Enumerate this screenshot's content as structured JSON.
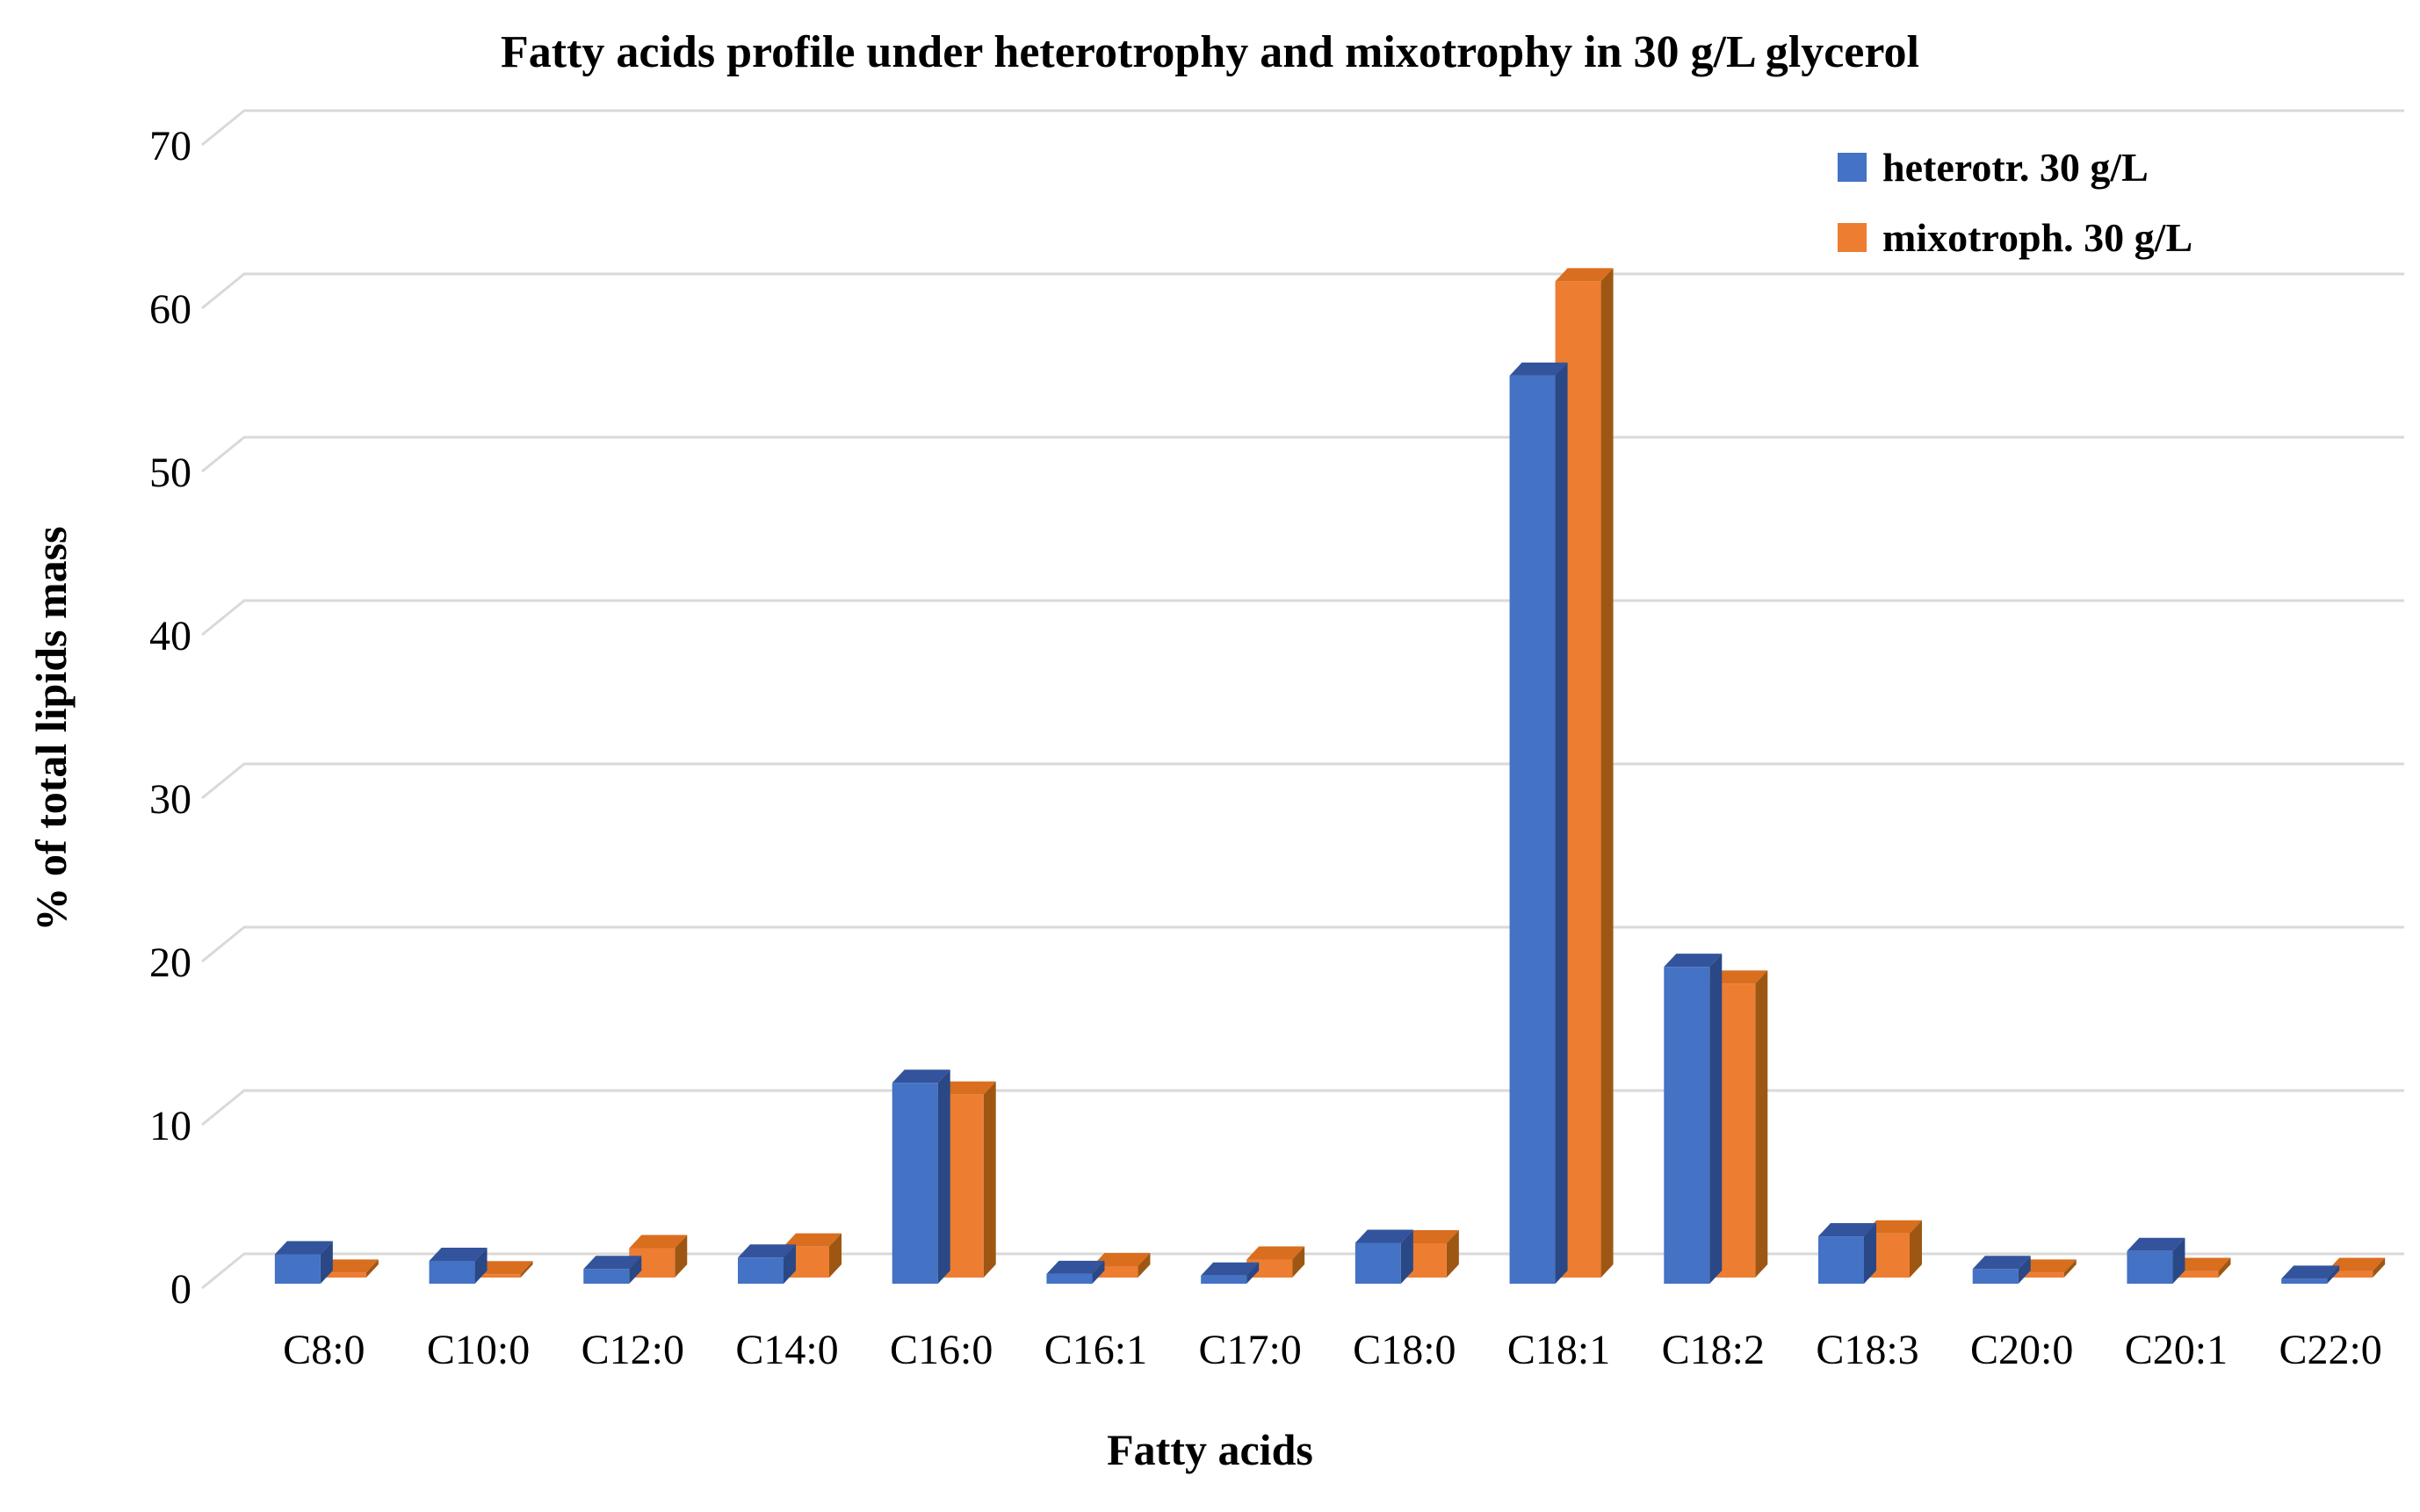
{
  "chart_data": {
    "type": "bar",
    "style": "3d-clustered-column",
    "title": "Fatty acids profile under heterotrophy and mixotrophy in 30 g/L glycerol",
    "xlabel": "Fatty acids",
    "ylabel": "% of total lipids mass",
    "categories": [
      "C8:0",
      "C10:0",
      "C12:0",
      "C14:0",
      "C16:0",
      "C16:1",
      "C17:0",
      "C18:0",
      "C18:1",
      "C18:2",
      "C18:3",
      "C20:0",
      "C20:1",
      "C22:0"
    ],
    "series": [
      {
        "name": "heterotr. 30 g/L",
        "color": "#4472C4",
        "color_top": "#33549C",
        "color_side": "#2A4886",
        "values": [
          1.8,
          1.4,
          0.9,
          1.6,
          12.3,
          0.6,
          0.5,
          2.5,
          55.6,
          19.4,
          2.9,
          0.9,
          2.0,
          0.3
        ]
      },
      {
        "name": "mixotroph. 30 g/L",
        "color": "#ED7D31",
        "color_top": "#D96E1F",
        "color_side": "#9E5713",
        "values": [
          0.3,
          0.2,
          1.8,
          1.9,
          11.2,
          0.7,
          1.1,
          2.1,
          61.0,
          18.0,
          2.7,
          0.3,
          0.4,
          0.4
        ]
      }
    ],
    "ylim": [
      0,
      70
    ],
    "yticks": [
      0,
      10,
      20,
      30,
      40,
      50,
      60,
      70
    ],
    "grid": true,
    "gridline_color": "#D9D9D9",
    "legend_position": "top-right"
  }
}
